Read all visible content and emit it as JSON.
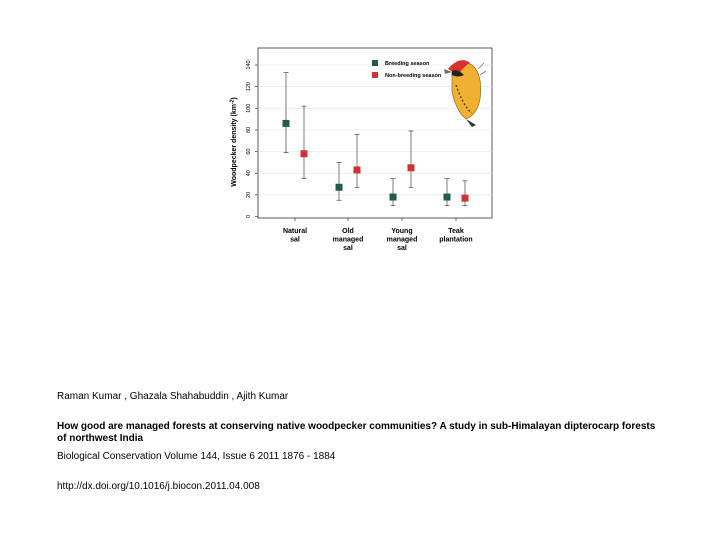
{
  "chart_data": {
    "type": "scatter",
    "ylabel": "Woodpecker density (km",
    "ylabel_superscript": "-2",
    "ylabel_close": ")",
    "ylim": [
      0,
      150
    ],
    "yticks": [
      0,
      20,
      40,
      60,
      80,
      100,
      120,
      140
    ],
    "grid": true,
    "legend_position": "top-right",
    "categories": [
      [
        "Natural",
        "sal"
      ],
      [
        "Old",
        "managed",
        "sal"
      ],
      [
        "Young",
        "managed",
        "sal"
      ],
      [
        "Teak",
        "plantation"
      ]
    ],
    "series": [
      {
        "name": "Breeding season",
        "color": "#1f5c4a",
        "values": [
          86,
          27,
          18,
          18
        ],
        "lower": [
          59,
          15,
          10,
          10
        ],
        "upper": [
          133,
          50,
          35,
          35
        ]
      },
      {
        "name": "Non-breeding season",
        "color": "#cc3333",
        "values": [
          58,
          43,
          45,
          17
        ],
        "lower": [
          35,
          27,
          27,
          10
        ],
        "upper": [
          102,
          76,
          79,
          33
        ]
      }
    ]
  },
  "illustration": {
    "icon": "woodpecker-icon"
  },
  "citation": {
    "authors": "Raman  Kumar , Ghazala  Shahabuddin , Ajith  Kumar",
    "title": "How good are managed forests at conserving native woodpecker communities? A study in sub-Himalayan dipterocarp forests of northwest India",
    "journal": "Biological Conservation Volume 144, Issue 6 2011 1876 - 1884",
    "doi": "http://dx.doi.org/10.1016/j.biocon.2011.04.008"
  }
}
